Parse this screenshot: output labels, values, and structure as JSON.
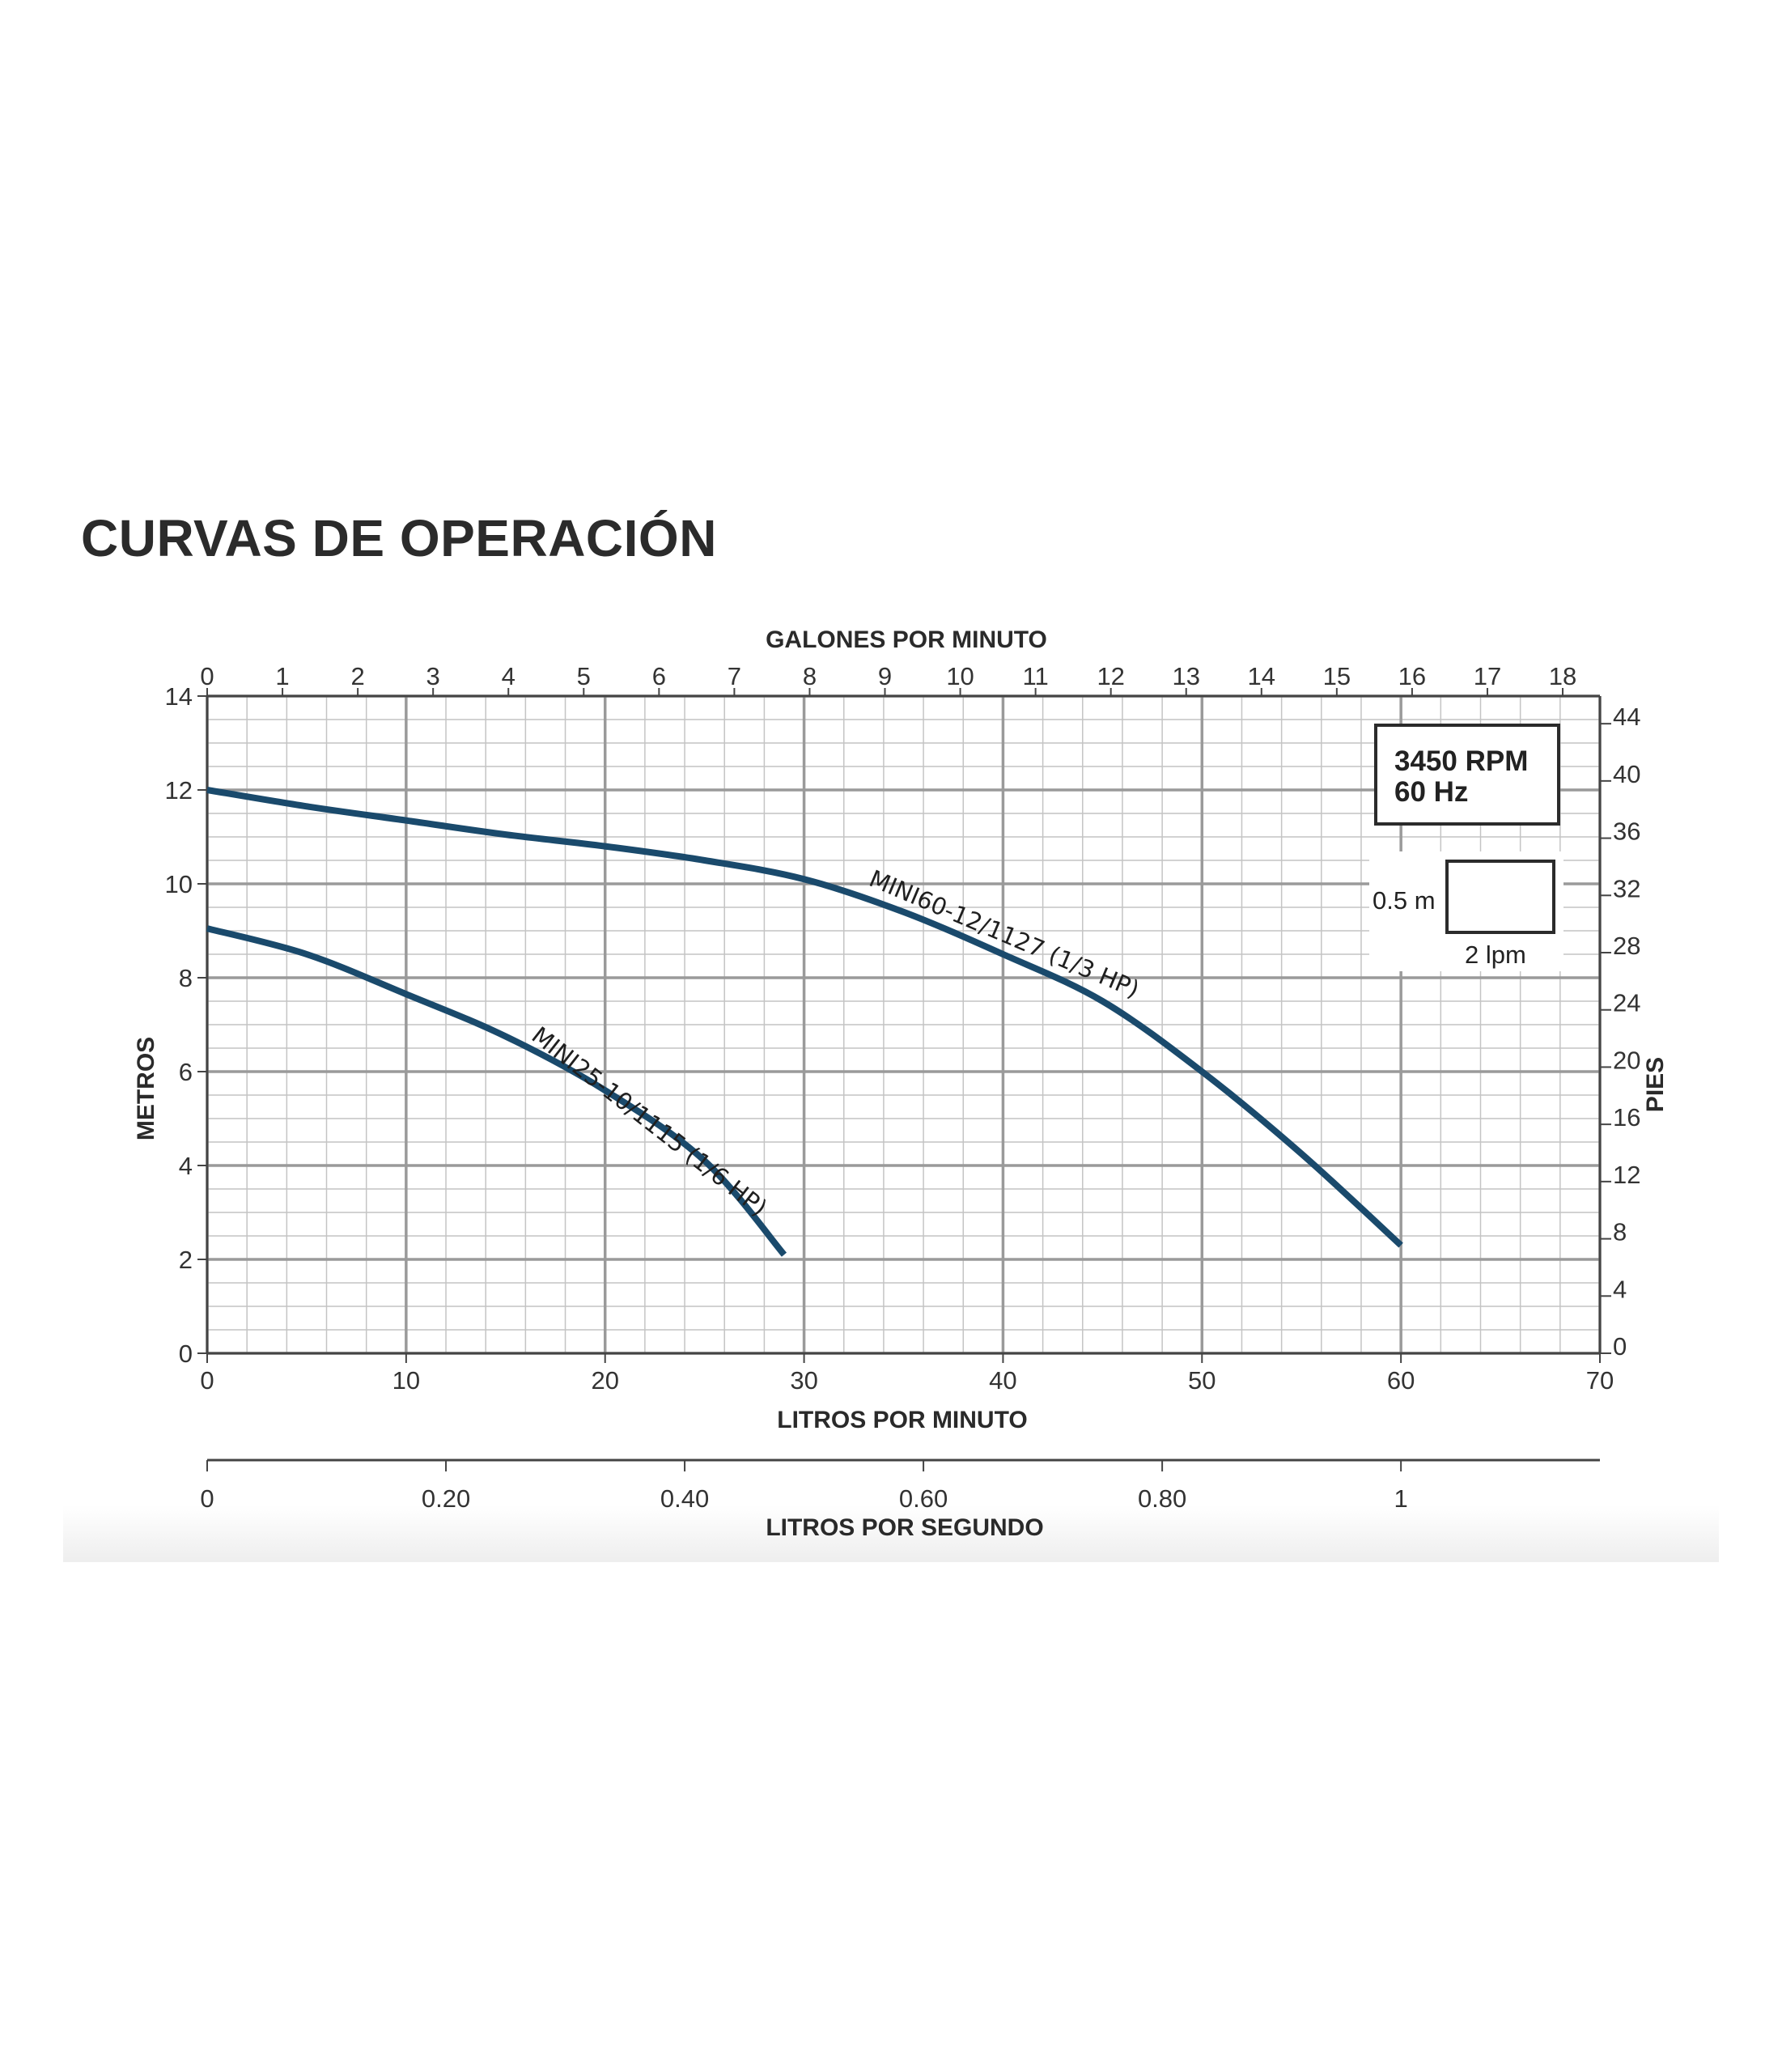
{
  "page": {
    "title": "CURVAS DE OPERACIÓN"
  },
  "colors": {
    "curve": "#1a4a6c",
    "grid_major": "#9a9a9a",
    "grid_minor": "#c4c4c4",
    "axis": "#444444"
  },
  "chart_data": {
    "type": "line",
    "title": "CURVAS DE OPERACIÓN",
    "xlabel": "LITROS POR MINUTO",
    "ylabel": "METROS",
    "xlim": [
      0,
      70
    ],
    "ylim": [
      0,
      14
    ],
    "x_ticks": [
      0,
      10,
      20,
      30,
      40,
      50,
      60,
      70
    ],
    "y_ticks": [
      0,
      2,
      4,
      6,
      8,
      10,
      12,
      14
    ],
    "grid": true,
    "top_axis": {
      "label": "GALONES POR MINUTO",
      "ticks": [
        0,
        1,
        2,
        3,
        4,
        5,
        6,
        7,
        8,
        9,
        10,
        11,
        12,
        13,
        14,
        15,
        16,
        17,
        18
      ]
    },
    "right_axis": {
      "label": "PIES",
      "ticks": [
        0,
        4,
        8,
        12,
        16,
        20,
        24,
        28,
        32,
        36,
        40,
        44
      ]
    },
    "bottom_axis": {
      "label": "LITROS POR SEGUNDO",
      "ticks": [
        "0",
        "0.20",
        "0.40",
        "0.60",
        "0.80",
        "1"
      ],
      "tick_values": [
        0,
        0.2,
        0.4,
        0.6,
        0.8,
        1.0
      ]
    },
    "annotations": {
      "rpm": "3450 RPM",
      "hz": "60 Hz",
      "scale_m": "0.5 m",
      "scale_lpm": "2 lpm"
    },
    "series": [
      {
        "name": "MINI60-12/1127 (1/3 HP)",
        "x": [
          0,
          5,
          10,
          15,
          20,
          25,
          30,
          35,
          40,
          45,
          50,
          55,
          60
        ],
        "y": [
          12.0,
          11.65,
          11.35,
          11.05,
          10.8,
          10.5,
          10.1,
          9.4,
          8.5,
          7.5,
          6.0,
          4.25,
          2.3
        ]
      },
      {
        "name": "MINI25-10/1115 (1/6 HP)",
        "x": [
          0,
          5,
          10,
          15,
          20,
          25,
          29
        ],
        "y": [
          9.05,
          8.5,
          7.65,
          6.75,
          5.6,
          4.1,
          2.1
        ]
      }
    ]
  }
}
